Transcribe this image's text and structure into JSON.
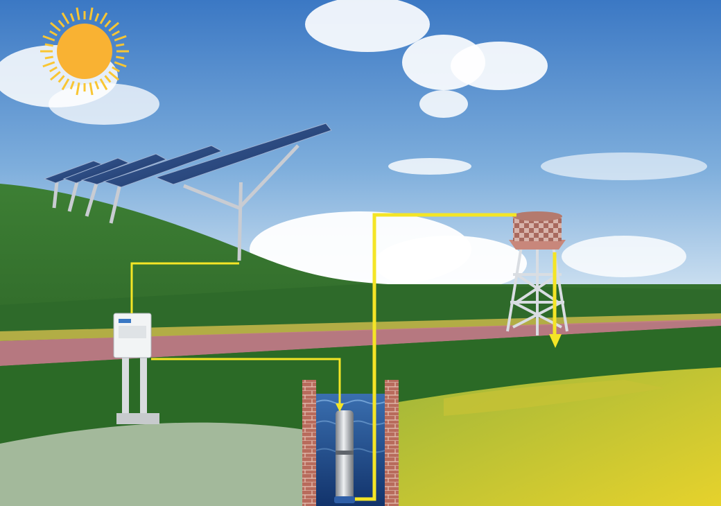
{
  "diagram": {
    "components": [
      {
        "id": "sun",
        "icon": "sun-icon"
      },
      {
        "id": "solar-panel-array",
        "icon": "solar-panel-icon"
      },
      {
        "id": "pump-controller",
        "icon": "controller-cabinet-icon"
      },
      {
        "id": "submersible-pump",
        "icon": "submersible-pump-icon"
      },
      {
        "id": "water-well",
        "icon": "well-icon"
      },
      {
        "id": "water-tower",
        "icon": "water-tower-icon"
      }
    ],
    "connections": [
      {
        "from": "solar-panel-array",
        "to": "pump-controller",
        "kind": "power-cable"
      },
      {
        "from": "pump-controller",
        "to": "submersible-pump",
        "kind": "power-cable"
      },
      {
        "from": "submersible-pump",
        "to": "water-tower",
        "kind": "water-pipe"
      }
    ]
  },
  "colors": {
    "sky_top": "#3f7dc7",
    "sky_bottom": "#c9def0",
    "sun": "#f9b233",
    "connector": "#f4e526",
    "hill_green": "#2f6d2a",
    "flower_field": "#e3c92f",
    "brick": "#b86b5c",
    "water": "#24508f"
  }
}
